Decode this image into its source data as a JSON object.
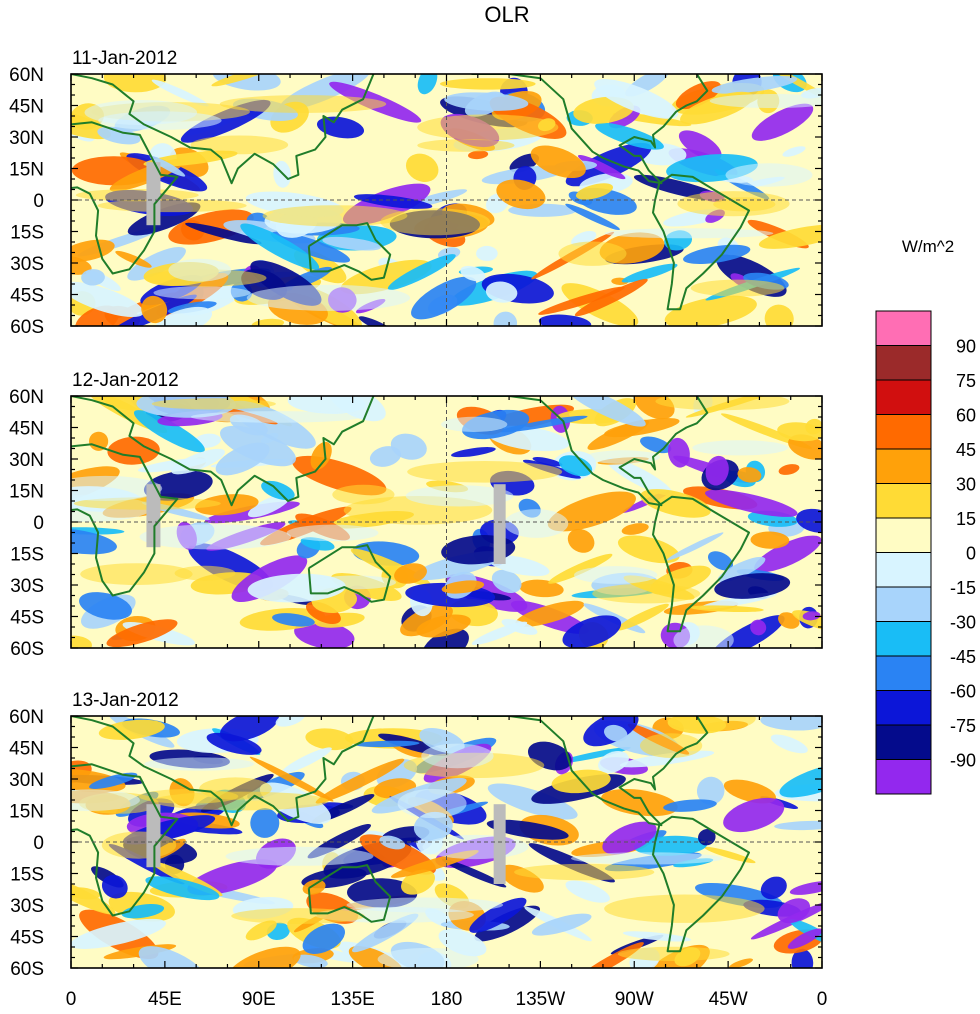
{
  "title": "OLR",
  "units_label": "W/m^2",
  "panels": [
    {
      "date": "11-Jan-2012"
    },
    {
      "date": "12-Jan-2012"
    },
    {
      "date": "13-Jan-2012"
    }
  ],
  "lat_labels": [
    "60N",
    "45N",
    "30N",
    "15N",
    "0",
    "15S",
    "30S",
    "45S",
    "60S"
  ],
  "lon_labels": [
    "0",
    "45E",
    "90E",
    "135E",
    "180",
    "135W",
    "90W",
    "45W",
    "0"
  ],
  "colorbar": {
    "levels": [
      "90",
      "75",
      "60",
      "45",
      "30",
      "15",
      "0",
      "-15",
      "-30",
      "-45",
      "-60",
      "-75",
      "-90"
    ],
    "colors": [
      "#ff6eb4",
      "#9b2a2a",
      "#d10f0f",
      "#ff6a00",
      "#ffa10a",
      "#ffdb35",
      "#fffcc4",
      "#d8f4ff",
      "#a8d4fb",
      "#19bdf6",
      "#2a83f3",
      "#0c16d8",
      "#040b8c",
      "#9328ee"
    ]
  },
  "map_colors": {
    "coast": "#207d2a",
    "grid": "#555555",
    "missing": "#bbbbbb"
  }
}
